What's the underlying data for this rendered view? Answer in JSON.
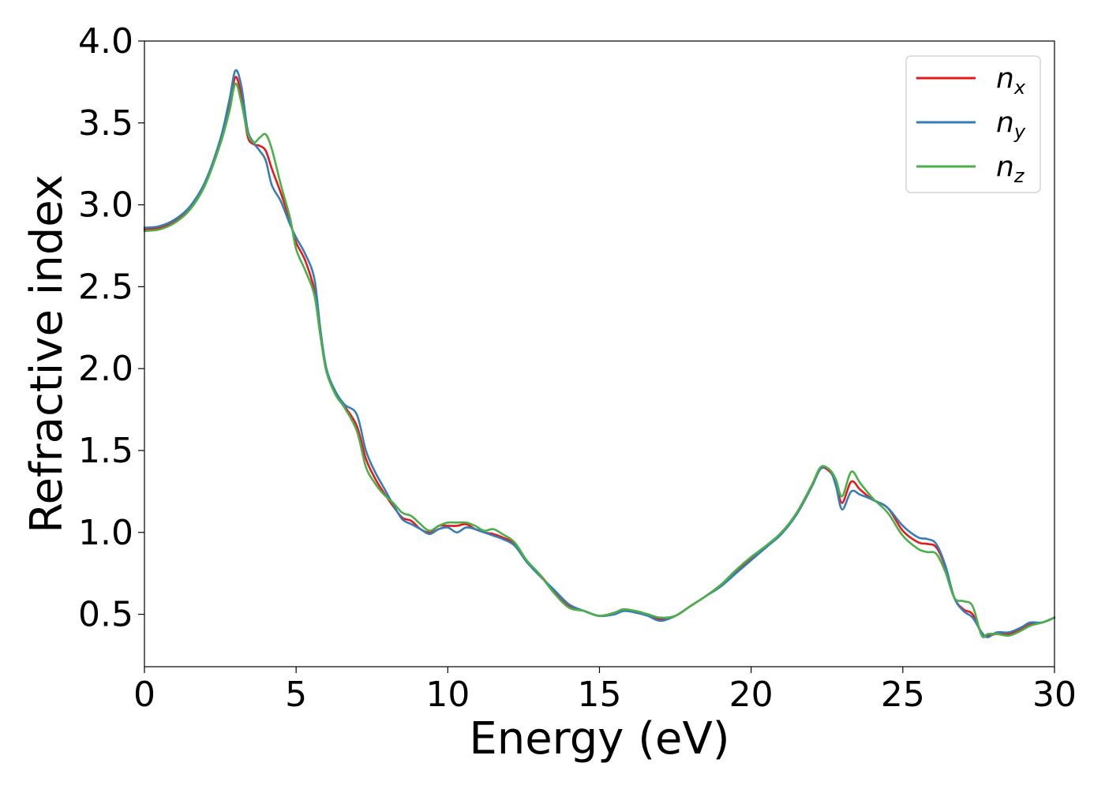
{
  "chart_data": {
    "type": "line",
    "xlabel": "Energy (eV)",
    "ylabel": "Refractive index",
    "xlim": [
      0,
      30
    ],
    "ylim": [
      0.18,
      4.0
    ],
    "xticks": [
      0,
      5,
      10,
      15,
      20,
      25,
      30
    ],
    "xtick_labels": [
      "0",
      "5",
      "10",
      "15",
      "20",
      "25",
      "30"
    ],
    "yticks": [
      0.5,
      1.0,
      1.5,
      2.0,
      2.5,
      3.0,
      3.5,
      4.0
    ],
    "ytick_labels": [
      "0.5",
      "1.0",
      "1.5",
      "2.0",
      "2.5",
      "3.0",
      "3.5",
      "4.0"
    ],
    "grid": false,
    "legend_position": "top-right",
    "series": [
      {
        "name": "n_x",
        "label_base": "n",
        "label_sub": "x",
        "color": "#e41a1c",
        "x": [
          0,
          0.5,
          1.0,
          1.5,
          2.0,
          2.5,
          2.8,
          3.0,
          3.2,
          3.4,
          3.6,
          3.8,
          4.0,
          4.2,
          4.5,
          4.8,
          5.0,
          5.3,
          5.6,
          5.8,
          6.0,
          6.3,
          6.6,
          7.0,
          7.3,
          7.6,
          7.9,
          8.2,
          8.5,
          8.8,
          9.1,
          9.4,
          9.7,
          10.0,
          10.3,
          10.6,
          10.9,
          11.2,
          11.5,
          11.8,
          12.2,
          12.6,
          13.0,
          13.5,
          14.0,
          14.5,
          15.0,
          15.5,
          15.8,
          16.2,
          16.6,
          17.0,
          17.5,
          18.0,
          18.5,
          19.0,
          19.5,
          20.0,
          20.5,
          21.0,
          21.5,
          22.0,
          22.3,
          22.6,
          22.8,
          23.0,
          23.3,
          23.6,
          24.0,
          24.5,
          25.0,
          25.5,
          25.8,
          26.1,
          26.4,
          26.7,
          27.0,
          27.3,
          27.6,
          27.8,
          28.1,
          28.5,
          28.9,
          29.2,
          29.6,
          30.0
        ],
        "values": [
          2.85,
          2.86,
          2.9,
          2.98,
          3.13,
          3.38,
          3.6,
          3.78,
          3.66,
          3.42,
          3.37,
          3.36,
          3.33,
          3.22,
          3.07,
          2.9,
          2.77,
          2.66,
          2.48,
          2.22,
          1.99,
          1.85,
          1.77,
          1.65,
          1.45,
          1.33,
          1.24,
          1.16,
          1.09,
          1.07,
          1.02,
          1.0,
          1.04,
          1.04,
          1.04,
          1.05,
          1.02,
          1.0,
          0.99,
          0.97,
          0.93,
          0.82,
          0.75,
          0.64,
          0.55,
          0.52,
          0.49,
          0.51,
          0.53,
          0.51,
          0.5,
          0.47,
          0.49,
          0.55,
          0.61,
          0.68,
          0.76,
          0.84,
          0.91,
          1.0,
          1.11,
          1.28,
          1.39,
          1.37,
          1.3,
          1.18,
          1.31,
          1.26,
          1.2,
          1.15,
          1.01,
          0.94,
          0.93,
          0.91,
          0.79,
          0.6,
          0.53,
          0.5,
          0.38,
          0.37,
          0.38,
          0.38,
          0.41,
          0.44,
          0.45,
          0.48
        ]
      },
      {
        "name": "n_y",
        "label_base": "n",
        "label_sub": "y",
        "color": "#377eb8",
        "x": [
          0,
          0.5,
          1.0,
          1.5,
          2.0,
          2.5,
          2.8,
          3.0,
          3.2,
          3.4,
          3.6,
          3.8,
          4.0,
          4.2,
          4.5,
          4.8,
          5.0,
          5.3,
          5.6,
          5.8,
          6.0,
          6.3,
          6.6,
          7.0,
          7.3,
          7.6,
          7.9,
          8.2,
          8.5,
          8.8,
          9.1,
          9.4,
          9.7,
          10.0,
          10.3,
          10.6,
          10.9,
          11.2,
          11.5,
          11.8,
          12.2,
          12.6,
          13.0,
          13.5,
          14.0,
          14.5,
          15.0,
          15.5,
          15.8,
          16.2,
          16.6,
          17.0,
          17.5,
          18.0,
          18.5,
          19.0,
          19.5,
          20.0,
          20.5,
          21.0,
          21.5,
          22.0,
          22.3,
          22.6,
          22.8,
          23.0,
          23.3,
          23.6,
          24.0,
          24.5,
          25.0,
          25.5,
          25.8,
          26.1,
          26.4,
          26.7,
          27.0,
          27.3,
          27.6,
          27.8,
          28.1,
          28.5,
          28.9,
          29.2,
          29.6,
          30.0
        ],
        "values": [
          2.86,
          2.87,
          2.91,
          2.99,
          3.14,
          3.4,
          3.64,
          3.82,
          3.72,
          3.46,
          3.38,
          3.33,
          3.27,
          3.12,
          3.02,
          2.88,
          2.8,
          2.7,
          2.55,
          2.24,
          2.0,
          1.86,
          1.78,
          1.72,
          1.5,
          1.37,
          1.27,
          1.17,
          1.08,
          1.05,
          1.02,
          0.99,
          1.02,
          1.03,
          1.0,
          1.03,
          1.02,
          1.0,
          0.98,
          0.96,
          0.92,
          0.82,
          0.74,
          0.65,
          0.56,
          0.52,
          0.49,
          0.5,
          0.52,
          0.51,
          0.49,
          0.46,
          0.49,
          0.55,
          0.61,
          0.67,
          0.75,
          0.83,
          0.91,
          0.99,
          1.11,
          1.28,
          1.39,
          1.38,
          1.28,
          1.14,
          1.25,
          1.23,
          1.2,
          1.15,
          1.04,
          0.97,
          0.96,
          0.93,
          0.8,
          0.6,
          0.52,
          0.48,
          0.39,
          0.36,
          0.39,
          0.39,
          0.42,
          0.45,
          0.45,
          0.48
        ]
      },
      {
        "name": "n_z",
        "label_base": "n",
        "label_sub": "z",
        "color": "#4daf4a",
        "x": [
          0,
          0.5,
          1.0,
          1.5,
          2.0,
          2.5,
          2.8,
          3.0,
          3.2,
          3.4,
          3.6,
          3.8,
          4.0,
          4.2,
          4.5,
          4.8,
          5.0,
          5.3,
          5.6,
          5.8,
          6.0,
          6.3,
          6.6,
          7.0,
          7.3,
          7.6,
          7.9,
          8.2,
          8.5,
          8.8,
          9.1,
          9.4,
          9.7,
          10.0,
          10.3,
          10.6,
          10.9,
          11.2,
          11.5,
          11.8,
          12.2,
          12.6,
          13.0,
          13.5,
          14.0,
          14.5,
          15.0,
          15.5,
          15.8,
          16.2,
          16.6,
          17.0,
          17.5,
          18.0,
          18.5,
          19.0,
          19.5,
          20.0,
          20.5,
          21.0,
          21.5,
          22.0,
          22.3,
          22.6,
          22.8,
          23.0,
          23.3,
          23.6,
          24.0,
          24.5,
          25.0,
          25.5,
          25.8,
          26.1,
          26.4,
          26.7,
          27.0,
          27.3,
          27.6,
          27.8,
          28.1,
          28.5,
          28.9,
          29.2,
          29.6,
          30.0
        ],
        "values": [
          2.84,
          2.85,
          2.89,
          2.97,
          3.12,
          3.37,
          3.57,
          3.74,
          3.62,
          3.44,
          3.38,
          3.41,
          3.43,
          3.34,
          3.12,
          2.92,
          2.73,
          2.6,
          2.45,
          2.2,
          1.98,
          1.84,
          1.76,
          1.62,
          1.4,
          1.3,
          1.23,
          1.18,
          1.12,
          1.1,
          1.05,
          1.01,
          1.04,
          1.06,
          1.06,
          1.06,
          1.04,
          1.01,
          1.02,
          0.99,
          0.94,
          0.83,
          0.75,
          0.63,
          0.54,
          0.52,
          0.49,
          0.51,
          0.53,
          0.52,
          0.5,
          0.48,
          0.49,
          0.55,
          0.61,
          0.68,
          0.77,
          0.85,
          0.92,
          1.0,
          1.12,
          1.29,
          1.4,
          1.38,
          1.32,
          1.22,
          1.37,
          1.3,
          1.21,
          1.12,
          0.98,
          0.9,
          0.88,
          0.87,
          0.76,
          0.6,
          0.58,
          0.55,
          0.37,
          0.38,
          0.38,
          0.37,
          0.4,
          0.43,
          0.45,
          0.48
        ]
      }
    ]
  }
}
